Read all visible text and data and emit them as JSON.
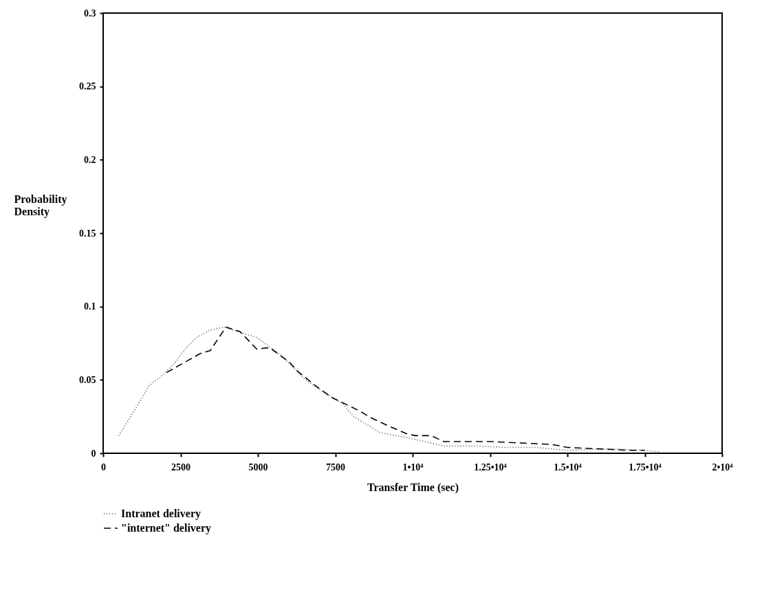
{
  "chart_data": {
    "type": "line",
    "xlabel": "Transfer Time (sec)",
    "ylabel": "Probability Density",
    "xlim": [
      0,
      20000
    ],
    "xticks": [
      0,
      2500,
      5000,
      7500,
      {
        "value": 10000,
        "label": "1•10⁴"
      },
      {
        "value": 12500,
        "label": "1.25•10⁴"
      },
      {
        "value": 15000,
        "label": "1.5•10⁴"
      },
      {
        "value": 17500,
        "label": "1.75•10⁴"
      },
      {
        "value": 20000,
        "label": "2•10⁴"
      }
    ],
    "ylim": [
      0,
      0.3
    ],
    "yticks": [
      0,
      0.05,
      0.1,
      0.15,
      0.2,
      0.25,
      0.3
    ],
    "grid": false,
    "legend": "bottom left",
    "series": [
      {
        "name": "Intranet delivery",
        "color": "#444444",
        "line_style": "dotted",
        "x": [
          500,
          770,
          1120,
          1480,
          1860,
          2290,
          2690,
          3030,
          3460,
          3900,
          4620,
          4960,
          5740,
          6540,
          7090,
          7730,
          8100,
          8950,
          9960,
          11000,
          12000,
          13000,
          14000,
          15000,
          16000,
          16500,
          17500,
          18000
        ],
        "values": [
          0.012,
          0.021,
          0.033,
          0.046,
          0.052,
          0.061,
          0.072,
          0.079,
          0.084,
          0.086,
          0.081,
          0.079,
          0.067,
          0.05,
          0.042,
          0.034,
          0.025,
          0.014,
          0.01,
          0.005,
          0.005,
          0.004,
          0.004,
          0.002,
          0.003,
          0.003,
          0.002,
          0.001
        ]
      },
      {
        "name": "\"internet\" delivery",
        "color": "#000000",
        "line_style": "dashed",
        "x": [
          2050,
          3140,
          3460,
          3970,
          4250,
          4420,
          4960,
          5380,
          6020,
          6280,
          6860,
          7390,
          8270,
          8670,
          9230,
          9800,
          10080,
          10600,
          11000,
          12000,
          12500,
          13500,
          14500,
          15000,
          16000,
          17000,
          17500
        ],
        "values": [
          0.055,
          0.068,
          0.07,
          0.086,
          0.084,
          0.083,
          0.071,
          0.072,
          0.062,
          0.056,
          0.046,
          0.038,
          0.029,
          0.024,
          0.0185,
          0.0134,
          0.012,
          0.012,
          0.008,
          0.008,
          0.008,
          0.007,
          0.006,
          0.004,
          0.003,
          0.002,
          0.002
        ]
      }
    ]
  }
}
